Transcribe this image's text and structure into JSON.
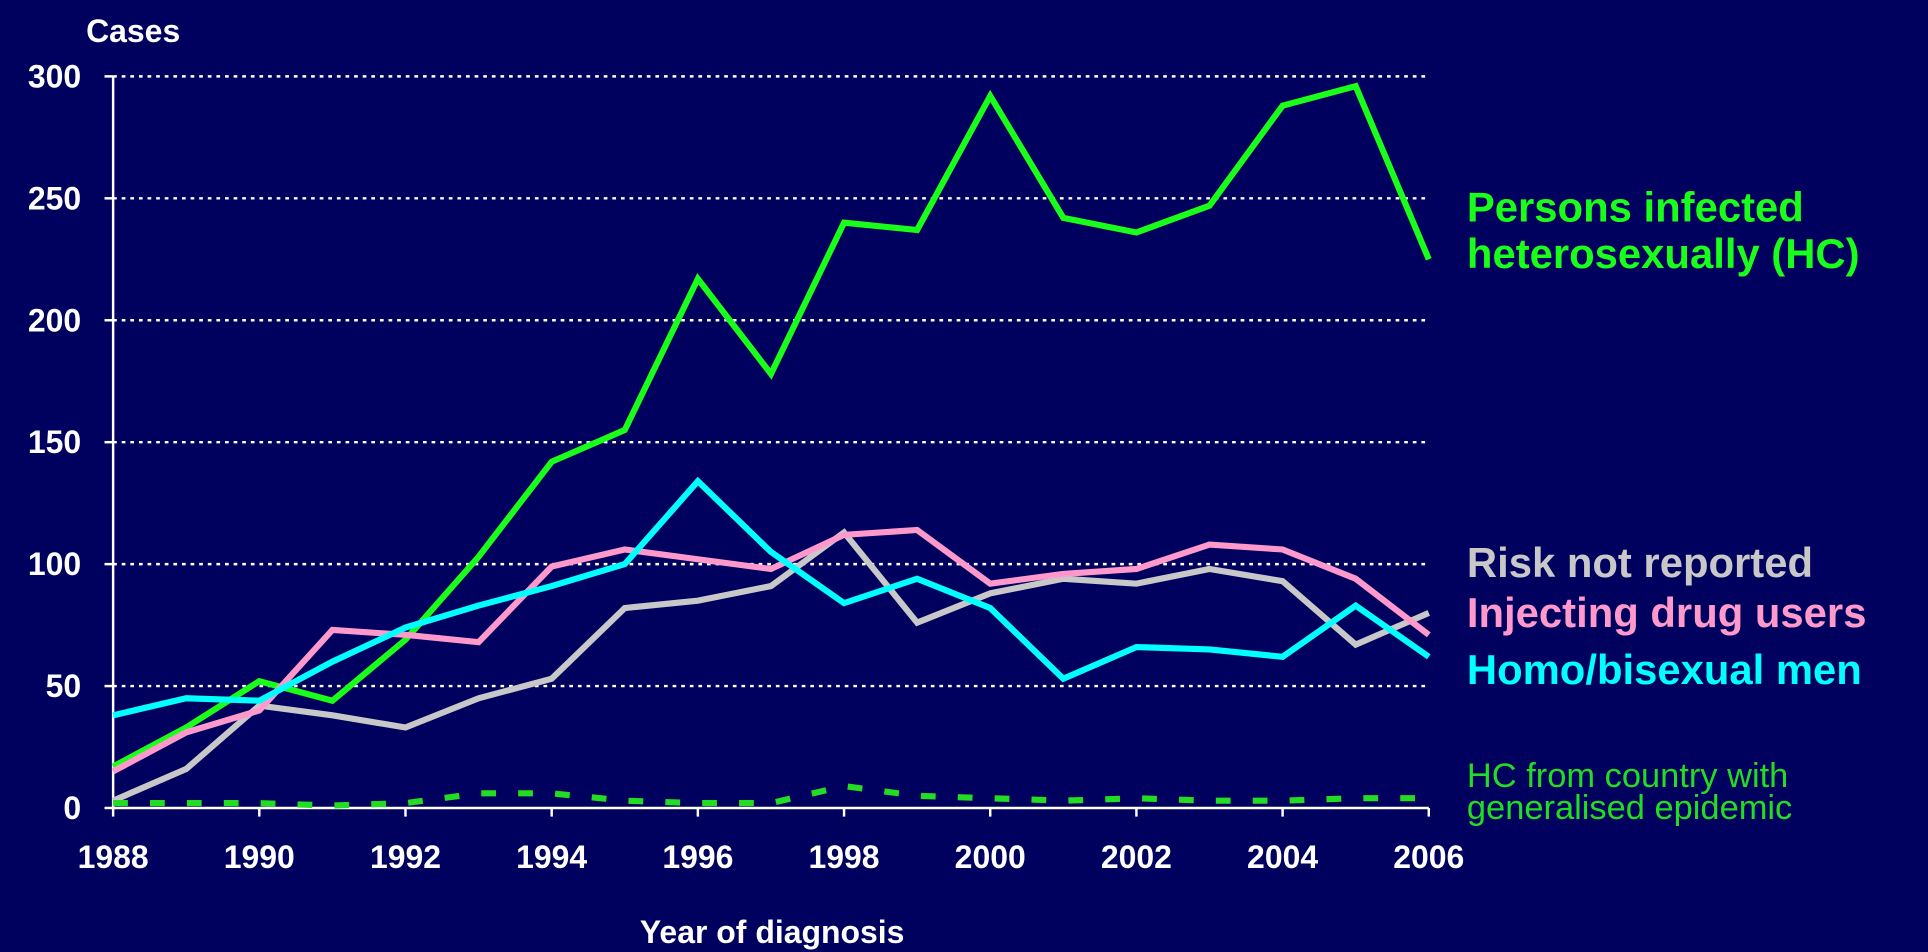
{
  "chart_data": {
    "type": "line",
    "ylabel": "Cases",
    "xlabel": "Year of diagnosis",
    "x": [
      1988,
      1989,
      1990,
      1991,
      1992,
      1993,
      1994,
      1995,
      1996,
      1997,
      1998,
      1999,
      2000,
      2001,
      2002,
      2003,
      2004,
      2005,
      2006
    ],
    "xlim": [
      1988,
      2006
    ],
    "xticks": [
      1988,
      1990,
      1992,
      1994,
      1996,
      1998,
      2000,
      2002,
      2004,
      2006
    ],
    "ylim": [
      0,
      300
    ],
    "yticks": [
      0,
      50,
      100,
      150,
      200,
      250,
      300
    ],
    "grid": true,
    "series": [
      {
        "name": "Persons infected heterosexually (HC)",
        "color": "#1aff1a",
        "style": "solid",
        "values": [
          17,
          33,
          52,
          44,
          69,
          103,
          142,
          155,
          217,
          178,
          240,
          237,
          292,
          242,
          236,
          247,
          288,
          296,
          225
        ]
      },
      {
        "name": "Risk not reported",
        "color": "#c8c8c8",
        "style": "solid",
        "values": [
          3,
          16,
          42,
          38,
          33,
          45,
          53,
          82,
          85,
          91,
          113,
          76,
          88,
          94,
          92,
          98,
          93,
          67,
          80
        ]
      },
      {
        "name": "Injecting drug users",
        "color": "#ff99cc",
        "style": "solid",
        "values": [
          15,
          31,
          40,
          73,
          71,
          68,
          99,
          106,
          102,
          98,
          112,
          114,
          92,
          96,
          98,
          108,
          106,
          94,
          71
        ]
      },
      {
        "name": "Homo/bisexual men",
        "color": "#00ffff",
        "style": "solid",
        "values": [
          38,
          45,
          44,
          60,
          74,
          83,
          91,
          100,
          134,
          105,
          84,
          94,
          82,
          53,
          66,
          65,
          62,
          83,
          62
        ]
      },
      {
        "name": "HC from country with generalised epidemic",
        "color": "#22dd22",
        "style": "dashed",
        "values": [
          2,
          2,
          2,
          1,
          2,
          6,
          6,
          3,
          2,
          2,
          9,
          5,
          4,
          3,
          4,
          3,
          3,
          4,
          4
        ]
      }
    ]
  }
}
